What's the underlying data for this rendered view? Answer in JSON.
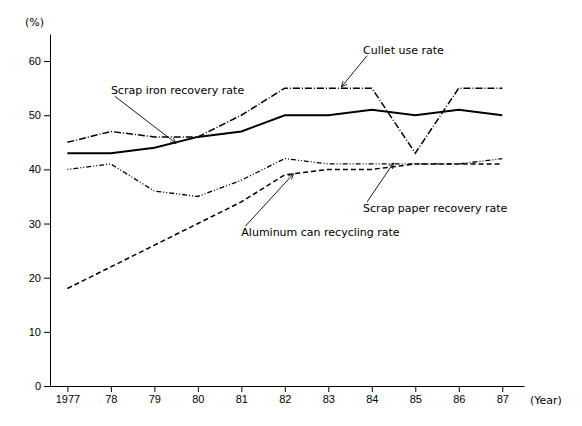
{
  "chart_data": {
    "type": "line",
    "title": "(%)",
    "xlabel": "(Year)",
    "x": [
      1977,
      1978,
      1979,
      1980,
      1981,
      1982,
      1983,
      1984,
      1985,
      1986,
      1987
    ],
    "xlim": [
      1976.6,
      1987.5
    ],
    "xticks": [
      1977,
      {
        "value": 1978,
        "label": "78"
      },
      {
        "value": 1979,
        "label": "79"
      },
      {
        "value": 1980,
        "label": "80"
      },
      {
        "value": 1981,
        "label": "81"
      },
      {
        "value": 1982,
        "label": "82"
      },
      {
        "value": 1983,
        "label": "83"
      },
      {
        "value": 1984,
        "label": "84"
      },
      {
        "value": 1985,
        "label": "85"
      },
      {
        "value": 1986,
        "label": "86"
      },
      {
        "value": 1987,
        "label": "87"
      }
    ],
    "ylim": [
      0,
      65
    ],
    "yticks": [
      0,
      10,
      20,
      30,
      40,
      50,
      60
    ],
    "grid": false,
    "series": [
      {
        "color": "#000000",
        "line_style": "solid",
        "values": [
          43,
          43,
          44,
          46,
          47,
          50,
          50,
          51,
          50,
          51,
          50
        ]
      },
      {
        "color": "#000000",
        "line_style": "dash-dot",
        "values": [
          45,
          47,
          46,
          46,
          50,
          55,
          55,
          55,
          43,
          55,
          55
        ]
      },
      {
        "color": "#000000",
        "line_style": "dot-dot-dash",
        "values": [
          40,
          41,
          36,
          35,
          38,
          42,
          41,
          41,
          41,
          41,
          42
        ]
      },
      {
        "color": "#000000",
        "line_style": "dashed",
        "values": [
          18,
          22,
          26,
          30,
          34,
          39,
          40,
          40,
          41,
          41,
          41
        ]
      }
    ],
    "annotations": [
      {
        "text": "Scrap iron recovery rate",
        "xy": [
          1979.5,
          44.8
        ],
        "xytext": [
          1978.0,
          53.5
        ]
      },
      {
        "text": "Cullet use rate",
        "xy": [
          1983.3,
          55.2
        ],
        "xytext": [
          1983.8,
          61.0
        ]
      },
      {
        "text": "Scrap paper recovery rate",
        "xy": [
          1984.5,
          41.2
        ],
        "xytext": [
          1983.8,
          34.0
        ]
      },
      {
        "text": "Aluminum can recycling rate",
        "xy": [
          1982.2,
          39.2
        ],
        "xytext": [
          1981.0,
          29.5
        ]
      }
    ]
  }
}
